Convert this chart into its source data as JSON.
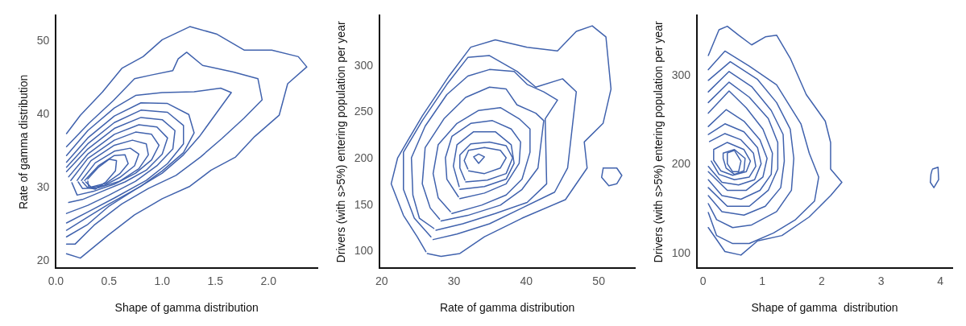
{
  "chart_data": [
    {
      "type": "line",
      "xlabel": "Shape of gamma distribution",
      "ylabel": "Rate of gamma distribution",
      "xlim": [
        0,
        2.46
      ],
      "ylim": [
        19,
        53.5
      ],
      "xticks": [
        {
          "value": 0,
          "label": "0.0"
        },
        0.5,
        {
          "value": 1,
          "label": "1.0"
        },
        1.5,
        {
          "value": 2,
          "label": "2.0"
        }
      ],
      "yticks": [
        20,
        30,
        40,
        50
      ],
      "grid": false,
      "legend": false,
      "marker": "none",
      "line_style": "solid",
      "series": [
        {
          "color": "#4062ad",
          "x": [
            0.1,
            0.23,
            0.44,
            0.62,
            0.82,
            1.0,
            1.26,
            1.51,
            1.77,
            2.03,
            2.28,
            2.36,
            2.18,
            2.1,
            1.87,
            1.69,
            1.46,
            1.26,
            1.0,
            0.74,
            0.49,
            0.23,
            0.1
          ],
          "values": [
            37.4,
            39.9,
            43.1,
            46.3,
            47.9,
            50.2,
            52.0,
            51.0,
            48.8,
            48.8,
            47.9,
            46.5,
            44.2,
            39.9,
            37.0,
            34.2,
            32.4,
            30.2,
            28.5,
            26.3,
            23.5,
            20.4,
            21.0
          ]
        },
        {
          "color": "#4062ad",
          "x": [
            0.1,
            0.31,
            0.54,
            0.74,
            0.9,
            1.1,
            1.15,
            1.23,
            1.38,
            1.67,
            1.9,
            1.94,
            1.77,
            1.56,
            1.36,
            1.13,
            0.87,
            0.62,
            0.36,
            0.18,
            0.1
          ],
          "values": [
            35.6,
            38.8,
            41.9,
            44.9,
            45.4,
            46.0,
            47.6,
            48.5,
            46.7,
            45.8,
            44.9,
            42.0,
            39.5,
            36.7,
            34.2,
            31.7,
            29.9,
            27.8,
            24.9,
            22.3,
            22.3
          ]
        },
        {
          "color": "#4062ad",
          "x": [
            0.1,
            0.3,
            0.55,
            0.75,
            1.0,
            1.3,
            1.55,
            1.65,
            1.5,
            1.35,
            1.2,
            1.0,
            0.75,
            0.5,
            0.3,
            0.1
          ],
          "values": [
            34.4,
            37.8,
            40.9,
            42.6,
            43.0,
            43.1,
            43.6,
            43.0,
            40.0,
            37.0,
            34.5,
            32.0,
            29.8,
            27.5,
            25.0,
            23.3
          ]
        },
        {
          "color": "#4062ad",
          "x": [
            0.1,
            0.3,
            0.55,
            0.8,
            1.05,
            1.25,
            1.3,
            1.2,
            1.0,
            0.8,
            0.5,
            0.3,
            0.1
          ],
          "values": [
            33.5,
            36.8,
            39.8,
            41.6,
            41.5,
            40.0,
            37.5,
            34.8,
            32.3,
            30.2,
            27.8,
            26.0,
            24.2
          ]
        },
        {
          "color": "#4062ad",
          "x": [
            0.1,
            0.3,
            0.55,
            0.8,
            1.05,
            1.2,
            1.2,
            1.05,
            0.85,
            0.55,
            0.3,
            0.1
          ],
          "values": [
            32.8,
            36.0,
            38.9,
            40.6,
            40.3,
            38.5,
            36.0,
            33.3,
            31.0,
            28.6,
            26.7,
            25.2
          ]
        },
        {
          "color": "#4062ad",
          "x": [
            0.1,
            0.3,
            0.55,
            0.8,
            1.0,
            1.12,
            1.1,
            0.95,
            0.75,
            0.5,
            0.3,
            0.1
          ],
          "values": [
            32.2,
            35.3,
            38.1,
            39.6,
            39.3,
            37.8,
            35.3,
            33.0,
            30.9,
            29.0,
            27.6,
            26.5
          ]
        },
        {
          "color": "#4062ad",
          "x": [
            0.12,
            0.3,
            0.55,
            0.78,
            0.95,
            1.05,
            1.0,
            0.85,
            0.65,
            0.45,
            0.25,
            0.12
          ],
          "values": [
            31.5,
            34.6,
            37.3,
            38.6,
            38.3,
            36.8,
            34.6,
            32.4,
            30.8,
            29.6,
            28.4,
            28.0
          ]
        },
        {
          "color": "#4062ad",
          "x": [
            0.14,
            0.3,
            0.55,
            0.75,
            0.9,
            0.97,
            0.9,
            0.75,
            0.55,
            0.35,
            0.2,
            0.15
          ],
          "values": [
            31.0,
            34.0,
            36.5,
            37.6,
            37.3,
            35.8,
            33.8,
            32.0,
            30.5,
            29.5,
            29.0,
            30.7
          ]
        },
        {
          "color": "#4062ad",
          "x": [
            0.2,
            0.33,
            0.55,
            0.72,
            0.85,
            0.87,
            0.78,
            0.6,
            0.4,
            0.25,
            0.21
          ],
          "values": [
            31.0,
            33.7,
            35.8,
            36.5,
            36.0,
            34.5,
            32.6,
            30.9,
            30.0,
            29.9,
            30.8
          ]
        },
        {
          "color": "#4062ad",
          "x": [
            0.24,
            0.37,
            0.55,
            0.7,
            0.78,
            0.74,
            0.6,
            0.45,
            0.3,
            0.25
          ],
          "values": [
            31.0,
            33.4,
            35.0,
            35.4,
            34.6,
            33.0,
            31.4,
            30.3,
            30.0,
            30.8
          ]
        },
        {
          "color": "#4062ad",
          "x": [
            0.27,
            0.4,
            0.55,
            0.65,
            0.68,
            0.6,
            0.47,
            0.33,
            0.28
          ],
          "values": [
            31.0,
            33.0,
            34.4,
            34.5,
            33.3,
            31.9,
            30.6,
            30.1,
            30.8
          ]
        },
        {
          "color": "#4062ad",
          "x": [
            0.3,
            0.4,
            0.5,
            0.57,
            0.56,
            0.47,
            0.37,
            0.31,
            0.3
          ],
          "values": [
            31.2,
            32.8,
            33.9,
            33.7,
            32.3,
            30.8,
            29.8,
            30.0,
            30.9
          ]
        }
      ]
    },
    {
      "type": "line",
      "xlabel": "Rate of gamma distribution",
      "ylabel": "Drivers (with s>5%) entering population per year",
      "xlim": [
        19.7,
        55
      ],
      "ylim": [
        82,
        354
      ],
      "xticks": [
        20,
        30,
        40,
        50
      ],
      "yticks": [
        100,
        150,
        200,
        250,
        300
      ],
      "grid": false,
      "legend": false,
      "marker": "none",
      "line_style": "solid",
      "series": [
        {
          "color": "#4062ad",
          "x": [
            26.3,
            28.2,
            30.8,
            34.2,
            39.4,
            45.4,
            48.4,
            48.0,
            50.6,
            51.7,
            51.0,
            49.1,
            46.9,
            44.3,
            40.1,
            35.7,
            32.3,
            29.3,
            25.6,
            22.2,
            21.3,
            23.0,
            24.9,
            26.1
          ],
          "values": [
            98,
            95,
            98,
            116,
            136,
            156,
            190,
            218,
            238,
            275,
            331,
            343,
            337,
            316,
            320,
            328,
            320,
            289,
            246,
            201,
            173,
            139,
            116,
            100
          ]
        },
        {
          "color": "#4062ad",
          "x": [
            27.1,
            30.4,
            34.9,
            39.4,
            43.9,
            45.7,
            46.9,
            45.0,
            41.3,
            38.7,
            34.9,
            31.9,
            29.0,
            25.6,
            23.0,
            23.0,
            24.5,
            26.8
          ],
          "values": [
            113,
            119,
            130,
            147,
            164,
            190,
            272,
            286,
            277,
            294,
            311,
            309,
            280,
            241,
            207,
            167,
            136,
            116
          ]
        },
        {
          "color": "#4062ad",
          "x": [
            27.5,
            31.2,
            35.7,
            40.1,
            42.8,
            42.6,
            44.3,
            42.4,
            40.1,
            38.3,
            34.9,
            31.9,
            29.0,
            26.0,
            24.1,
            24.3,
            25.2,
            27.2
          ],
          "values": [
            123,
            130,
            141,
            153,
            173,
            243,
            263,
            272,
            280,
            294,
            296,
            289,
            269,
            235,
            201,
            161,
            136,
            125
          ]
        },
        {
          "color": "#4062ad",
          "x": [
            28.2,
            31.9,
            36.4,
            39.4,
            41.6,
            42.4,
            41.3,
            38.7,
            37.2,
            34.9,
            31.6,
            28.6,
            26.0,
            25.6,
            26.7,
            28.0
          ],
          "values": [
            133,
            139,
            150,
            167,
            190,
            241,
            249,
            258,
            275,
            277,
            266,
            243,
            212,
            173,
            147,
            135
          ]
        },
        {
          "color": "#4062ad",
          "x": [
            29.7,
            33.8,
            37.2,
            39.4,
            40.5,
            40.5,
            39.0,
            36.4,
            33.4,
            30.4,
            27.8,
            27.1,
            27.8,
            29.5
          ],
          "values": [
            141,
            150,
            161,
            178,
            207,
            232,
            243,
            255,
            252,
            238,
            215,
            184,
            158,
            143
          ]
        },
        {
          "color": "#4062ad",
          "x": [
            30.8,
            34.2,
            37.2,
            39.0,
            39.2,
            37.9,
            35.3,
            32.3,
            29.7,
            28.8,
            29.0,
            30.6
          ],
          "values": [
            157,
            163,
            173,
            195,
            218,
            232,
            241,
            238,
            224,
            201,
            178,
            159
          ]
        },
        {
          "color": "#4062ad",
          "x": [
            30.8,
            34.2,
            37.2,
            38.3,
            37.9,
            35.7,
            32.7,
            30.4,
            29.9,
            30.7
          ],
          "values": [
            167,
            170,
            178,
            195,
            215,
            229,
            229,
            215,
            192,
            170
          ]
        },
        {
          "color": "#4062ad",
          "x": [
            31.6,
            34.6,
            37.2,
            38.1,
            37.2,
            34.9,
            32.3,
            30.8,
            30.8,
            31.5
          ],
          "values": [
            175,
            177,
            184,
            201,
            214,
            218,
            216,
            204,
            190,
            177
          ]
        },
        {
          "color": "#4062ad",
          "x": [
            32.0,
            34.2,
            36.4,
            37.2,
            36.4,
            34.2,
            32.0,
            31.4,
            31.9
          ],
          "values": [
            187,
            184,
            190,
            201,
            209,
            212,
            209,
            198,
            189
          ]
        },
        {
          "color": "#4062ad",
          "x": [
            32.7,
            33.4,
            34.2,
            33.4,
            32.8
          ],
          "values": [
            202,
            205,
            202,
            195,
            201
          ]
        },
        {
          "color": "#4062ad",
          "x": [
            50.6,
            52.5,
            53.2,
            52.5,
            51.4,
            50.4,
            50.6
          ],
          "values": [
            190,
            190,
            182,
            173,
            171,
            180,
            189
          ]
        }
      ]
    },
    {
      "type": "line",
      "xlabel": "Shape of gamma  distribution",
      "ylabel": "Drivers (with s>5%) entering population per year",
      "xlim": [
        -0.1,
        4.2
      ],
      "ylim": [
        83,
        368
      ],
      "xticks": [
        0,
        1,
        2,
        3,
        4
      ],
      "yticks": [
        100,
        200,
        300
      ],
      "grid": false,
      "legend": false,
      "marker": "none",
      "line_style": "solid",
      "series": [
        {
          "color": "#4062ad",
          "x": [
            0.09,
            0.27,
            0.41,
            0.6,
            0.82,
            1.05,
            1.24,
            1.47,
            1.74,
            2.06,
            2.15,
            2.15,
            2.34,
            2.15,
            1.79,
            1.33,
            0.92,
            0.64,
            0.37,
            0.09
          ],
          "values": [
            323,
            352,
            356,
            346,
            335,
            344,
            346,
            320,
            279,
            249,
            225,
            195,
            180,
            165,
            141,
            120,
            114,
            98,
            102,
            129
          ]
        },
        {
          "color": "#4062ad",
          "x": [
            0.09,
            0.37,
            0.78,
            1.24,
            1.65,
            1.79,
            1.95,
            1.88,
            1.56,
            1.19,
            0.78,
            0.5,
            0.23,
            0.09
          ],
          "values": [
            307,
            328,
            311,
            290,
            246,
            213,
            186,
            159,
            138,
            123,
            111,
            111,
            120,
            146
          ]
        },
        {
          "color": "#4062ad",
          "x": [
            0.09,
            0.46,
            0.92,
            1.24,
            1.47,
            1.53,
            1.49,
            1.24,
            0.82,
            0.5,
            0.23,
            0.09
          ],
          "values": [
            295,
            316,
            296,
            270,
            240,
            207,
            171,
            147,
            132,
            129,
            138,
            156
          ]
        },
        {
          "color": "#4062ad",
          "x": [
            0.09,
            0.44,
            0.82,
            1.15,
            1.35,
            1.37,
            1.31,
            1.05,
            0.69,
            0.32,
            0.09
          ],
          "values": [
            282,
            305,
            288,
            261,
            234,
            204,
            174,
            153,
            143,
            147,
            165
          ]
        },
        {
          "color": "#4062ad",
          "x": [
            0.09,
            0.44,
            0.78,
            1.1,
            1.26,
            1.26,
            1.1,
            0.78,
            0.41,
            0.09
          ],
          "values": [
            270,
            293,
            276,
            252,
            225,
            195,
            171,
            153,
            153,
            174
          ]
        },
        {
          "color": "#4062ad",
          "x": [
            0.09,
            0.44,
            0.73,
            1.01,
            1.17,
            1.15,
            0.96,
            0.64,
            0.32,
            0.09
          ],
          "values": [
            258,
            283,
            264,
            240,
            213,
            189,
            171,
            161,
            165,
            183
          ]
        },
        {
          "color": "#4062ad",
          "x": [
            0.09,
            0.39,
            0.69,
            0.96,
            1.08,
            1.01,
            0.73,
            0.41,
            0.09
          ],
          "values": [
            243,
            262,
            249,
            228,
            207,
            186,
            171,
            171,
            192
          ]
        },
        {
          "color": "#4062ad",
          "x": [
            0.09,
            0.37,
            0.69,
            0.92,
            0.98,
            0.87,
            0.6,
            0.32,
            0.09
          ],
          "values": [
            234,
            246,
            237,
            219,
            201,
            183,
            177,
            180,
            198
          ]
        },
        {
          "color": "#4062ad",
          "x": [
            0.11,
            0.37,
            0.64,
            0.85,
            0.89,
            0.78,
            0.53,
            0.27,
            0.14
          ],
          "values": [
            226,
            235,
            228,
            213,
            198,
            186,
            183,
            189,
            204
          ]
        },
        {
          "color": "#4062ad",
          "x": [
            0.18,
            0.41,
            0.69,
            0.8,
            0.73,
            0.5,
            0.3,
            0.18,
            0.18
          ],
          "values": [
            217,
            225,
            217,
            204,
            192,
            188,
            193,
            205,
            216
          ]
        },
        {
          "color": "#4062ad",
          "x": [
            0.34,
            0.53,
            0.71,
            0.69,
            0.53,
            0.39,
            0.34,
            0.34
          ],
          "values": [
            213,
            217,
            207,
            193,
            189,
            196,
            207,
            212
          ]
        },
        {
          "color": "#4062ad",
          "x": [
            0.41,
            0.53,
            0.64,
            0.6,
            0.5,
            0.41,
            0.41
          ],
          "values": [
            213,
            216,
            204,
            192,
            192,
            201,
            212
          ]
        },
        {
          "color": "#4062ad",
          "x": [
            3.87,
            3.96,
            3.97,
            3.89,
            3.83,
            3.84,
            3.86
          ],
          "values": [
            195,
            197,
            183,
            174,
            180,
            189,
            194
          ]
        }
      ]
    }
  ]
}
